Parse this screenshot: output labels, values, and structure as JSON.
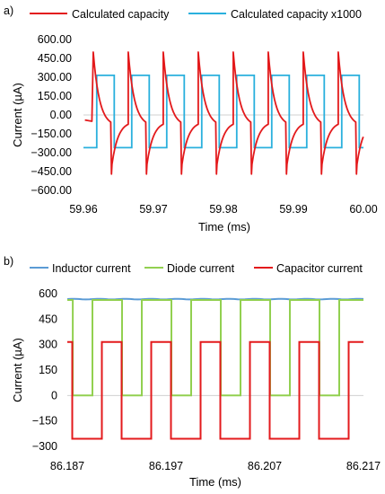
{
  "chart_data": [
    {
      "type": "line",
      "panel_label": "a)",
      "xlabel": "Time (ms)",
      "ylabel": "Current (µA)",
      "xlim": [
        59.96,
        60.0
      ],
      "ylim": [
        -600,
        600
      ],
      "x_ticks": [
        "59.96",
        "59.97",
        "59.98",
        "59.99",
        "60.00"
      ],
      "y_ticks": [
        "600.00",
        "450.00",
        "300.00",
        "150.00",
        "0.00",
        "−150.00",
        "−300.00",
        "−450.00",
        "−600.00"
      ],
      "legend_position": "top",
      "series": [
        {
          "name": "Calculated capacity",
          "color": "#e31a1c",
          "period_ms": 0.005,
          "first_rise_ms": 59.9614,
          "peak": 500,
          "trough": -470,
          "end_of_high_half": -90,
          "end_of_low_half": -50
        },
        {
          "name": "Calculated capacity x1000",
          "color": "#2ab0dd",
          "period_ms": 0.005,
          "first_rise_ms": 59.9619,
          "high": 315,
          "low": -260
        }
      ]
    },
    {
      "type": "line",
      "panel_label": "b)",
      "xlabel": "Time (ms)",
      "ylabel": "Current (µA)",
      "xlim": [
        86.187,
        86.217
      ],
      "ylim": [
        -300,
        600
      ],
      "x_ticks": [
        "86.187",
        "86.197",
        "86.207",
        "86.217"
      ],
      "y_ticks": [
        "600",
        "450",
        "300",
        "150",
        "0",
        "−150",
        "−300"
      ],
      "legend_position": "top",
      "series": [
        {
          "name": "Inductor current",
          "color": "#5b9bd5",
          "level": 568
        },
        {
          "name": "Diode current",
          "color": "#92d050",
          "period_ms": 0.005,
          "first_fall_ms": 86.18755,
          "high": 563,
          "low": 0,
          "high_fraction": 0.6
        },
        {
          "name": "Capacitor current",
          "color": "#e31a1c",
          "period_ms": 0.005,
          "first_rise_ms": 86.1905,
          "high": 315,
          "low": -255,
          "high_fraction": 0.4
        }
      ]
    }
  ]
}
